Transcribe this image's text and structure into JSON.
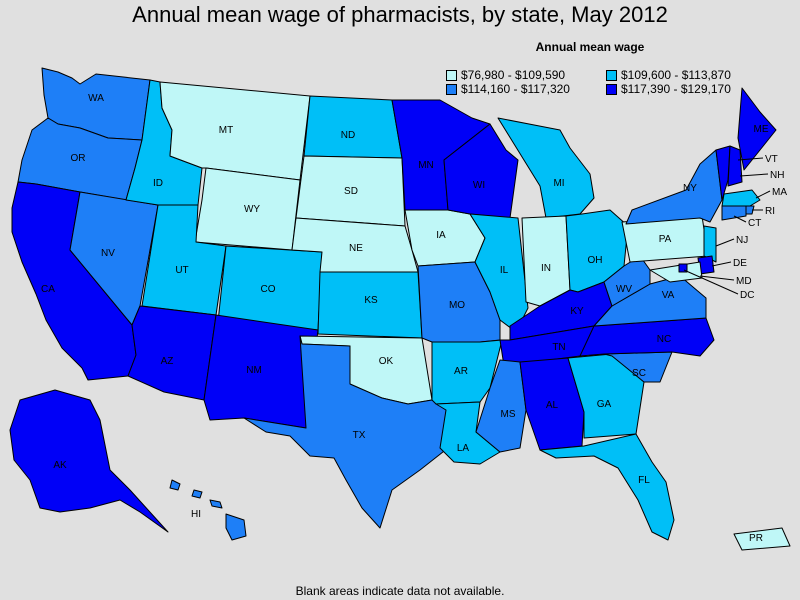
{
  "title": "Annual mean wage of pharmacists, by state, May 2012",
  "legend": {
    "title": "Annual mean wage",
    "items": [
      {
        "label": "$76,980 - $109,590",
        "color": "#bff7f7"
      },
      {
        "label": "$109,600 - $113,870",
        "color": "#00bff7"
      },
      {
        "label": "$114,160 - $117,320",
        "color": "#1e7ff7"
      },
      {
        "label": "$117,390 - $129,170",
        "color": "#0000f7"
      }
    ]
  },
  "note": "Blank areas indicate data not available.",
  "states": [
    {
      "code": "WA",
      "tier": 2
    },
    {
      "code": "OR",
      "tier": 2
    },
    {
      "code": "CA",
      "tier": 3
    },
    {
      "code": "NV",
      "tier": 2
    },
    {
      "code": "ID",
      "tier": 1
    },
    {
      "code": "MT",
      "tier": 0
    },
    {
      "code": "WY",
      "tier": 0
    },
    {
      "code": "UT",
      "tier": 1
    },
    {
      "code": "AZ",
      "tier": 3
    },
    {
      "code": "CO",
      "tier": 1
    },
    {
      "code": "NM",
      "tier": 3
    },
    {
      "code": "ND",
      "tier": 1
    },
    {
      "code": "SD",
      "tier": 0
    },
    {
      "code": "NE",
      "tier": 0
    },
    {
      "code": "KS",
      "tier": 1
    },
    {
      "code": "OK",
      "tier": 0
    },
    {
      "code": "TX",
      "tier": 2
    },
    {
      "code": "MN",
      "tier": 3
    },
    {
      "code": "IA",
      "tier": 0
    },
    {
      "code": "MO",
      "tier": 2
    },
    {
      "code": "AR",
      "tier": 1
    },
    {
      "code": "LA",
      "tier": 1
    },
    {
      "code": "WI",
      "tier": 3
    },
    {
      "code": "IL",
      "tier": 1
    },
    {
      "code": "MI",
      "tier": 1
    },
    {
      "code": "IN",
      "tier": 0
    },
    {
      "code": "OH",
      "tier": 1
    },
    {
      "code": "KY",
      "tier": 3
    },
    {
      "code": "TN",
      "tier": 3
    },
    {
      "code": "MS",
      "tier": 2
    },
    {
      "code": "AL",
      "tier": 3
    },
    {
      "code": "GA",
      "tier": 1
    },
    {
      "code": "FL",
      "tier": 1
    },
    {
      "code": "SC",
      "tier": 2
    },
    {
      "code": "NC",
      "tier": 3
    },
    {
      "code": "VA",
      "tier": 2
    },
    {
      "code": "WV",
      "tier": 2
    },
    {
      "code": "PA",
      "tier": 0
    },
    {
      "code": "NY",
      "tier": 2
    },
    {
      "code": "ME",
      "tier": 3
    },
    {
      "code": "VT",
      "tier": 3
    },
    {
      "code": "NH",
      "tier": 3
    },
    {
      "code": "MA",
      "tier": 1
    },
    {
      "code": "RI",
      "tier": 2
    },
    {
      "code": "CT",
      "tier": 2
    },
    {
      "code": "NJ",
      "tier": 1
    },
    {
      "code": "DE",
      "tier": 3
    },
    {
      "code": "MD",
      "tier": 0
    },
    {
      "code": "DC",
      "tier": 3
    },
    {
      "code": "AK",
      "tier": 3
    },
    {
      "code": "HI",
      "tier": 2
    },
    {
      "code": "PR",
      "tier": 0
    }
  ]
}
